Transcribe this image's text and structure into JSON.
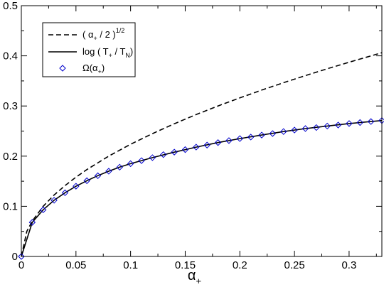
{
  "chart_data": {
    "type": "line",
    "xlabel": "α",
    "xlabel_sub": "+",
    "ylabel": "",
    "xlim": [
      0,
      0.33
    ],
    "ylim": [
      0,
      0.5
    ],
    "x_ticks": [
      0,
      0.05,
      0.1,
      0.15,
      0.2,
      0.25,
      0.3
    ],
    "x_tick_labels": [
      "0",
      "0.05",
      "0.1",
      "0.15",
      "0.2",
      "0.25",
      "0.3"
    ],
    "y_ticks": [
      0,
      0.1,
      0.2,
      0.3,
      0.4,
      0.5
    ],
    "y_tick_labels": [
      "0",
      "0.1",
      "0.2",
      "0.3",
      "0.4",
      "0.5"
    ],
    "grid": false,
    "legend_position": "top-left",
    "legend": [
      {
        "pre": "( α",
        "sub": "+",
        "mid": " / 2 )",
        "sup": "1/2",
        "post": "",
        "style": "dashed"
      },
      {
        "pre": "log ( T",
        "sub": "+",
        "mid": " / T",
        "sub2": "N",
        "post": ")",
        "style": "solid"
      },
      {
        "pre": "Ω(α",
        "sub": "+",
        "post": ")",
        "style": "diamond"
      }
    ],
    "series": [
      {
        "style": "dashed",
        "color": "#000000",
        "x": [
          0,
          0.005,
          0.01,
          0.02,
          0.03,
          0.04,
          0.05,
          0.06,
          0.08,
          0.1,
          0.12,
          0.14,
          0.16,
          0.18,
          0.2,
          0.22,
          0.24,
          0.26,
          0.28,
          0.3,
          0.33
        ],
        "y": [
          0,
          0.05,
          0.0707,
          0.1,
          0.1225,
          0.1414,
          0.1581,
          0.1732,
          0.2,
          0.2236,
          0.2449,
          0.2646,
          0.2828,
          0.3,
          0.3162,
          0.3317,
          0.3464,
          0.3606,
          0.3742,
          0.3873,
          0.4062
        ]
      },
      {
        "style": "solid",
        "color": "#000000",
        "x": [
          0,
          0.01,
          0.02,
          0.03,
          0.04,
          0.05,
          0.06,
          0.07,
          0.08,
          0.09,
          0.1,
          0.12,
          0.14,
          0.16,
          0.18,
          0.2,
          0.22,
          0.24,
          0.26,
          0.28,
          0.3,
          0.33
        ],
        "y": [
          0,
          0.068,
          0.093,
          0.112,
          0.127,
          0.14,
          0.151,
          0.161,
          0.17,
          0.178,
          0.185,
          0.197,
          0.208,
          0.218,
          0.227,
          0.235,
          0.242,
          0.249,
          0.255,
          0.26,
          0.265,
          0.271
        ]
      },
      {
        "style": "diamond",
        "color": "#0000cc",
        "x": [
          0,
          0.01,
          0.02,
          0.03,
          0.04,
          0.05,
          0.06,
          0.07,
          0.08,
          0.09,
          0.1,
          0.11,
          0.12,
          0.13,
          0.14,
          0.15,
          0.16,
          0.17,
          0.18,
          0.19,
          0.2,
          0.21,
          0.22,
          0.23,
          0.24,
          0.25,
          0.26,
          0.27,
          0.28,
          0.29,
          0.3,
          0.31,
          0.32,
          0.33
        ],
        "y": [
          0,
          0.068,
          0.093,
          0.112,
          0.127,
          0.14,
          0.151,
          0.161,
          0.17,
          0.178,
          0.185,
          0.191,
          0.197,
          0.203,
          0.208,
          0.213,
          0.218,
          0.222,
          0.227,
          0.231,
          0.235,
          0.238,
          0.242,
          0.245,
          0.249,
          0.252,
          0.255,
          0.257,
          0.26,
          0.262,
          0.265,
          0.267,
          0.269,
          0.271
        ]
      }
    ]
  }
}
